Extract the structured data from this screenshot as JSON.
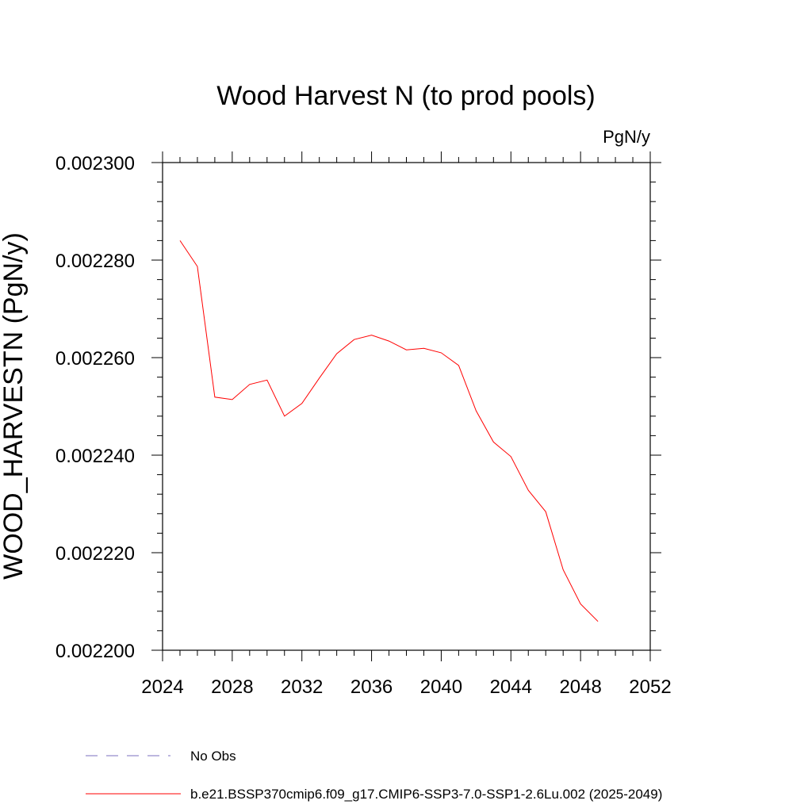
{
  "chart_data": {
    "type": "line",
    "title": "Wood Harvest N (to prod pools)",
    "units": "PgN/y",
    "xlabel": "",
    "ylabel": "WOOD_HARVESTN  (PgN/y)",
    "xlim": [
      2024,
      2052
    ],
    "ylim": [
      0.0022,
      0.0023
    ],
    "x_ticks": [
      2024,
      2028,
      2032,
      2036,
      2040,
      2044,
      2048,
      2052
    ],
    "x_tick_labels": [
      "2024",
      "2028",
      "2032",
      "2036",
      "2040",
      "2044",
      "2048",
      "2052"
    ],
    "y_ticks": [
      0.0022,
      0.00222,
      0.00224,
      0.00226,
      0.00228,
      0.0023
    ],
    "y_tick_labels": [
      "0.002200",
      "0.002220",
      "0.002240",
      "0.002260",
      "0.002280",
      "0.002300"
    ],
    "grid": false,
    "legend_position": "bottom",
    "series": [
      {
        "name": "b.e21.BSSP370cmip6.f09_g17.CMIP6-SSP3-7.0-SSP1-2.6Lu.002 (2025-2049)",
        "color": "#ff0000",
        "style": "solid",
        "x": [
          2025,
          2026,
          2027,
          2028,
          2029,
          2030,
          2031,
          2032,
          2033,
          2034,
          2035,
          2036,
          2037,
          2038,
          2039,
          2040,
          2041,
          2042,
          2043,
          2044,
          2045,
          2046,
          2047,
          2048,
          2049
        ],
        "values": [
          0.002284,
          0.0022787,
          0.0022519,
          0.0022514,
          0.0022545,
          0.0022554,
          0.002248,
          0.0022506,
          0.0022558,
          0.0022608,
          0.0022637,
          0.0022646,
          0.0022634,
          0.0022616,
          0.0022619,
          0.002261,
          0.0022584,
          0.0022491,
          0.0022427,
          0.0022397,
          0.0022328,
          0.0022284,
          0.0022165,
          0.0022095,
          0.0022059
        ]
      }
    ],
    "legend": [
      {
        "label": "No Obs",
        "color": "#7b6fbf",
        "style": "dashed"
      },
      {
        "label": "b.e21.BSSP370cmip6.f09_g17.CMIP6-SSP3-7.0-SSP1-2.6Lu.002 (2025-2049)",
        "color": "#ff0000",
        "style": "solid"
      }
    ]
  }
}
